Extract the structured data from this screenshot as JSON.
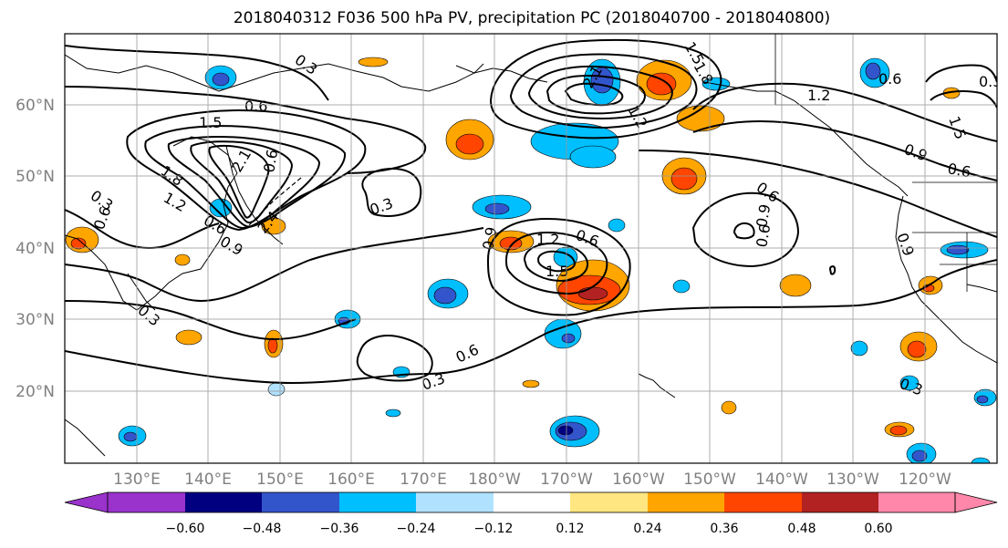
{
  "title": "2018040312 F036 500 hPa PV, precipitation PC (2018040700 - 2018040800)",
  "map": {
    "lat_labels": [
      "60°N",
      "50°N",
      "40°N",
      "30°N",
      "20°N"
    ],
    "lon_labels": [
      "130°E",
      "140°E",
      "150°E",
      "160°E",
      "170°E",
      "180°W",
      "170°W",
      "160°W",
      "150°W",
      "140°W",
      "130°W",
      "120°W"
    ],
    "contour_labels": [
      "0.3",
      "0.6",
      "0.6",
      "0.9",
      "1.2",
      "1.5",
      "1.8",
      "2.1",
      "2.4",
      "0.3",
      "0.6",
      "0.6",
      "0.3",
      "1.2",
      "1.5",
      "0.9",
      "0.6",
      "0.3",
      "0.6",
      "0.3",
      "0.6",
      "0.9",
      "0.6",
      "1.2",
      "0.9",
      "0.6",
      "0.3",
      "1.5",
      "0.3",
      "0.6",
      "0.9",
      "1.2",
      "1.5",
      "1.8",
      "2.1"
    ]
  },
  "colorbar": {
    "ticks": [
      "−0.60",
      "−0.48",
      "−0.36",
      "−0.24",
      "−0.12",
      "0.12",
      "0.24",
      "0.36",
      "0.48",
      "0.60"
    ],
    "colors": [
      "#9933cc",
      "#000080",
      "#3355cc",
      "#00bfff",
      "#b0e2ff",
      "#ffffff",
      "#ffe680",
      "#ffa500",
      "#ff4500",
      "#b22222",
      "#ff88aa"
    ]
  }
}
